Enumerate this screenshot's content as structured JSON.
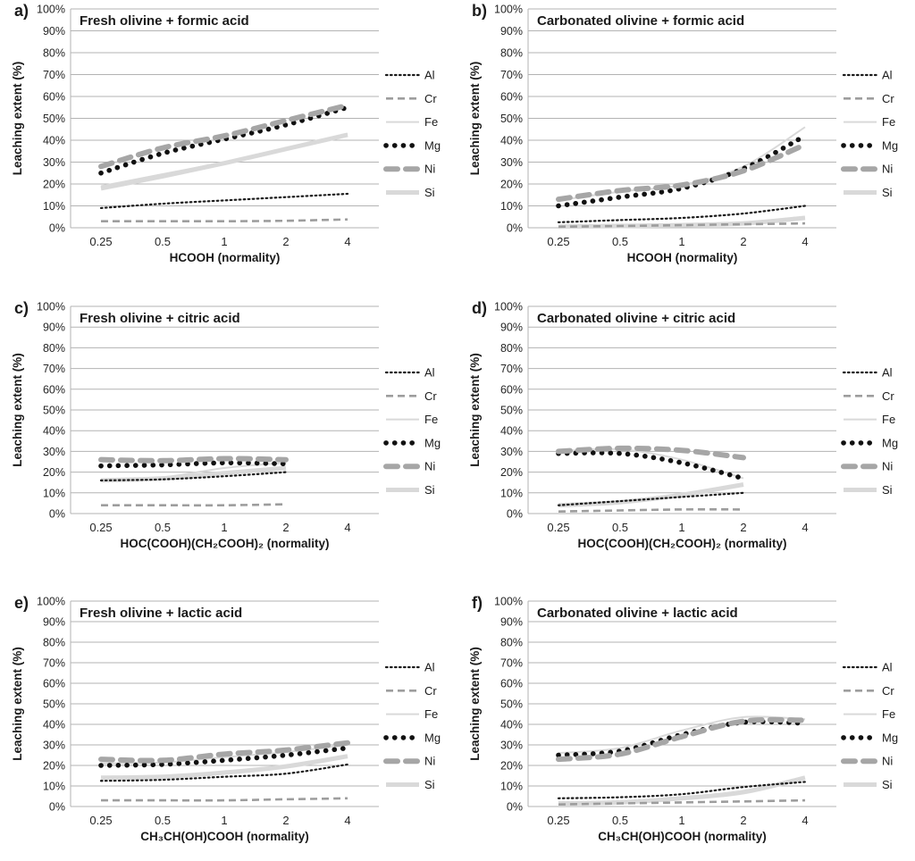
{
  "chart_data": {
    "type": "line",
    "x_scale": "log2",
    "ylabel": "Leaching extent (%)",
    "ylim": [
      0,
      100
    ],
    "grid": true,
    "legend_position": "right",
    "ytick_labels": [
      "0%",
      "10%",
      "20%",
      "30%",
      "40%",
      "50%",
      "60%",
      "70%",
      "80%",
      "90%",
      "100%"
    ],
    "xtick_values": [
      0.25,
      0.5,
      1,
      2,
      4
    ],
    "xtick_labels": [
      "0.25",
      "0.5",
      "1",
      "2",
      "4"
    ],
    "legend": [
      "Al",
      "Cr",
      "Fe",
      "Mg",
      "Ni",
      "Si"
    ],
    "colors": {
      "black_series": "#1a1a1a",
      "gray_series": "#a6a6a6",
      "light_gray_series": "#d9d9d9",
      "gridline": "#b3b3b3"
    },
    "panels": [
      {
        "id": "a",
        "label": "a)",
        "title": "Fresh olivine + formic acid",
        "xlabel": "HCOOH (normality)",
        "x": [
          0.25,
          0.5,
          1,
          2,
          4
        ],
        "series": [
          {
            "name": "Al",
            "values": [
              9,
              11,
              12.5,
              14,
              15.5
            ]
          },
          {
            "name": "Cr",
            "values": [
              3,
              3,
              3,
              3.2,
              3.8
            ]
          },
          {
            "name": "Fe",
            "values": [
              19,
              24.5,
              30,
              36,
              43
            ]
          },
          {
            "name": "Mg",
            "values": [
              25,
              34,
              40.5,
              47,
              55
            ]
          },
          {
            "name": "Ni",
            "values": [
              28,
              36.5,
              42,
              49,
              56
            ]
          },
          {
            "name": "Si",
            "values": [
              18,
              23.5,
              29.5,
              36,
              42.5
            ]
          }
        ]
      },
      {
        "id": "b",
        "label": "b)",
        "title": "Carbonated olivine + formic acid",
        "xlabel": "HCOOH (normality)",
        "x": [
          0.25,
          0.5,
          1,
          2,
          4
        ],
        "series": [
          {
            "name": "Al",
            "values": [
              2.5,
              3.5,
              4.5,
              6.5,
              10
            ]
          },
          {
            "name": "Cr",
            "values": [
              0.5,
              0.8,
              1.2,
              1.6,
              2
            ]
          },
          {
            "name": "Fe",
            "values": [
              12.5,
              16.5,
              19.5,
              28,
              46
            ]
          },
          {
            "name": "Mg",
            "values": [
              10,
              14,
              18,
              27,
              42
            ]
          },
          {
            "name": "Ni",
            "values": [
              13,
              17,
              19.5,
              26,
              38
            ]
          },
          {
            "name": "Si",
            "values": [
              0.5,
              0.8,
              1.2,
              2,
              4.5
            ]
          }
        ]
      },
      {
        "id": "c",
        "label": "c)",
        "title": "Fresh olivine + citric acid",
        "xlabel": "HOC(COOH)(CH₂COOH)₂ (normality)",
        "x": [
          0.25,
          0.5,
          1,
          2
        ],
        "series": [
          {
            "name": "Al",
            "values": [
              16,
              16.5,
              18,
              20
            ]
          },
          {
            "name": "Cr",
            "values": [
              4,
              4,
              4,
              4.5
            ]
          },
          {
            "name": "Fe",
            "values": [
              16.5,
              17.5,
              22,
              24.5
            ]
          },
          {
            "name": "Mg",
            "values": [
              23,
              23.5,
              24.5,
              24
            ]
          },
          {
            "name": "Ni",
            "values": [
              26,
              25.5,
              26.5,
              26
            ]
          },
          {
            "name": "Si",
            "values": [
              16,
              17,
              19.5,
              22
            ]
          }
        ]
      },
      {
        "id": "d",
        "label": "d)",
        "title": "Carbonated olivine + citric acid",
        "xlabel": "HOC(COOH)(CH₂COOH)₂ (normality)",
        "x": [
          0.25,
          0.5,
          1,
          2
        ],
        "series": [
          {
            "name": "Al",
            "values": [
              4,
              6,
              8,
              10
            ]
          },
          {
            "name": "Cr",
            "values": [
              1,
              1.5,
              2,
              2
            ]
          },
          {
            "name": "Fe",
            "values": [
              30,
              31,
              26,
              17
            ]
          },
          {
            "name": "Mg",
            "values": [
              29,
              29,
              24.5,
              17
            ]
          },
          {
            "name": "Ni",
            "values": [
              30,
              31.5,
              30.5,
              27
            ]
          },
          {
            "name": "Si",
            "values": [
              4,
              5.5,
              9,
              14
            ]
          }
        ]
      },
      {
        "id": "e",
        "label": "e)",
        "title": "Fresh olivine + lactic acid",
        "xlabel": "CH₃CH(OH)COOH (normality)",
        "x": [
          0.25,
          0.5,
          1,
          2,
          4
        ],
        "series": [
          {
            "name": "Al",
            "values": [
              12.5,
              13,
              14.5,
              16,
              20.5
            ]
          },
          {
            "name": "Cr",
            "values": [
              3,
              3,
              3,
              3.5,
              4
            ]
          },
          {
            "name": "Fe",
            "values": [
              21,
              21.5,
              24,
              26.5,
              30
            ]
          },
          {
            "name": "Mg",
            "values": [
              20,
              20.5,
              22.5,
              25,
              28.5
            ]
          },
          {
            "name": "Ni",
            "values": [
              23,
              22.5,
              25.5,
              27.5,
              31
            ]
          },
          {
            "name": "Si",
            "values": [
              14,
              14.5,
              16.5,
              19.5,
              24.5
            ]
          }
        ]
      },
      {
        "id": "f",
        "label": "f)",
        "title": "Carbonated olivine + lactic acid",
        "xlabel": "CH₃CH(OH)COOH (normality)",
        "x": [
          0.25,
          0.5,
          1,
          2,
          4
        ],
        "series": [
          {
            "name": "Al",
            "values": [
              4,
              4.5,
              6,
              9.5,
              12
            ]
          },
          {
            "name": "Cr",
            "values": [
              1,
              1.5,
              2,
              2.5,
              3
            ]
          },
          {
            "name": "Fe",
            "values": [
              26,
              28.5,
              37,
              43.5,
              42.5
            ]
          },
          {
            "name": "Mg",
            "values": [
              25,
              27,
              35,
              41,
              40.5
            ]
          },
          {
            "name": "Ni",
            "values": [
              23,
              25.5,
              34,
              41.5,
              42
            ]
          },
          {
            "name": "Si",
            "values": [
              1.5,
              2,
              4,
              7,
              14
            ]
          }
        ]
      }
    ]
  }
}
